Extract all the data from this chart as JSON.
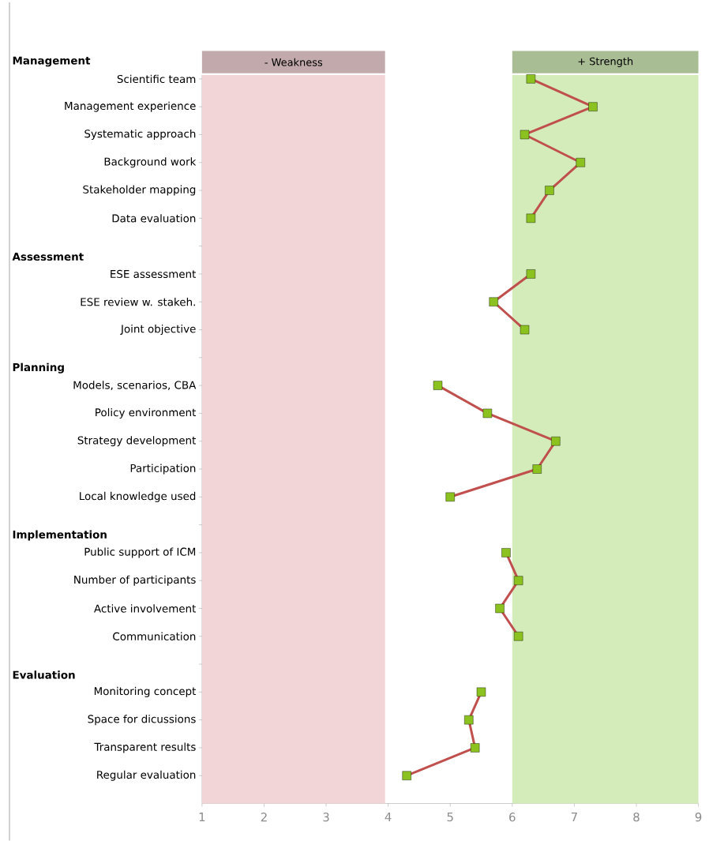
{
  "chart_data": {
    "type": "line",
    "orientation": "horizontal",
    "categories": [
      "Scientific team",
      "Management experience",
      "Systematic approach",
      "Background work",
      "Stakeholder mapping",
      "Data evaluation",
      null,
      "ESE assessment",
      "ESE review w. stakeh.",
      "Joint objective",
      null,
      "Models, scenarios, CBA",
      "Policy environment",
      "Strategy development",
      "Participation",
      "Local knowledge used",
      null,
      "Public support of ICM",
      "Number of participants",
      "Active involvement",
      "Communication",
      null,
      "Monitoring concept",
      "Space for dicussions",
      "Transparent results",
      "Regular evaluation"
    ],
    "xlim": [
      1,
      9
    ],
    "xticks": [
      1,
      2,
      3,
      4,
      5,
      6,
      7,
      8,
      9
    ],
    "series": [
      {
        "color": "#c0504d",
        "colors": [
          "#8cc21f",
          "#8cc21f",
          "#8cc21f",
          "#8cc21f",
          "#8cc21f",
          "#8cc21f",
          null,
          "#8cc21f",
          "#8cc21f",
          "#8cc21f",
          null,
          "#8cc21f",
          "#8cc21f",
          "#8cc21f",
          "#8cc21f",
          "#8cc21f",
          null,
          "#8cc21f",
          "#8cc21f",
          "#8cc21f",
          "#8cc21f",
          null,
          "#8cc21f",
          "#8cc21f",
          "#8cc21f",
          "#8cc21f"
        ],
        "values": [
          6.3,
          7.3,
          6.2,
          7.1,
          6.6,
          6.3,
          null,
          6.3,
          5.7,
          6.2,
          null,
          4.8,
          5.6,
          6.7,
          6.4,
          5.0,
          null,
          5.9,
          6.1,
          5.8,
          6.1,
          null,
          5.5,
          5.3,
          5.4,
          4.3
        ]
      }
    ],
    "bands": [
      {
        "axis": "x",
        "from": 1,
        "to": 3.95,
        "label": "- Weakness",
        "color": "#f2d5d7"
      },
      {
        "axis": "x",
        "from": 6,
        "to": 9,
        "label": "+ Strength",
        "color": "#d3ecba"
      }
    ],
    "annotations": [
      "Management",
      "Assessment",
      "Planning",
      "Implementation",
      "Evaluation"
    ],
    "marker": "square",
    "line_style": "solid",
    "grid": false
  }
}
